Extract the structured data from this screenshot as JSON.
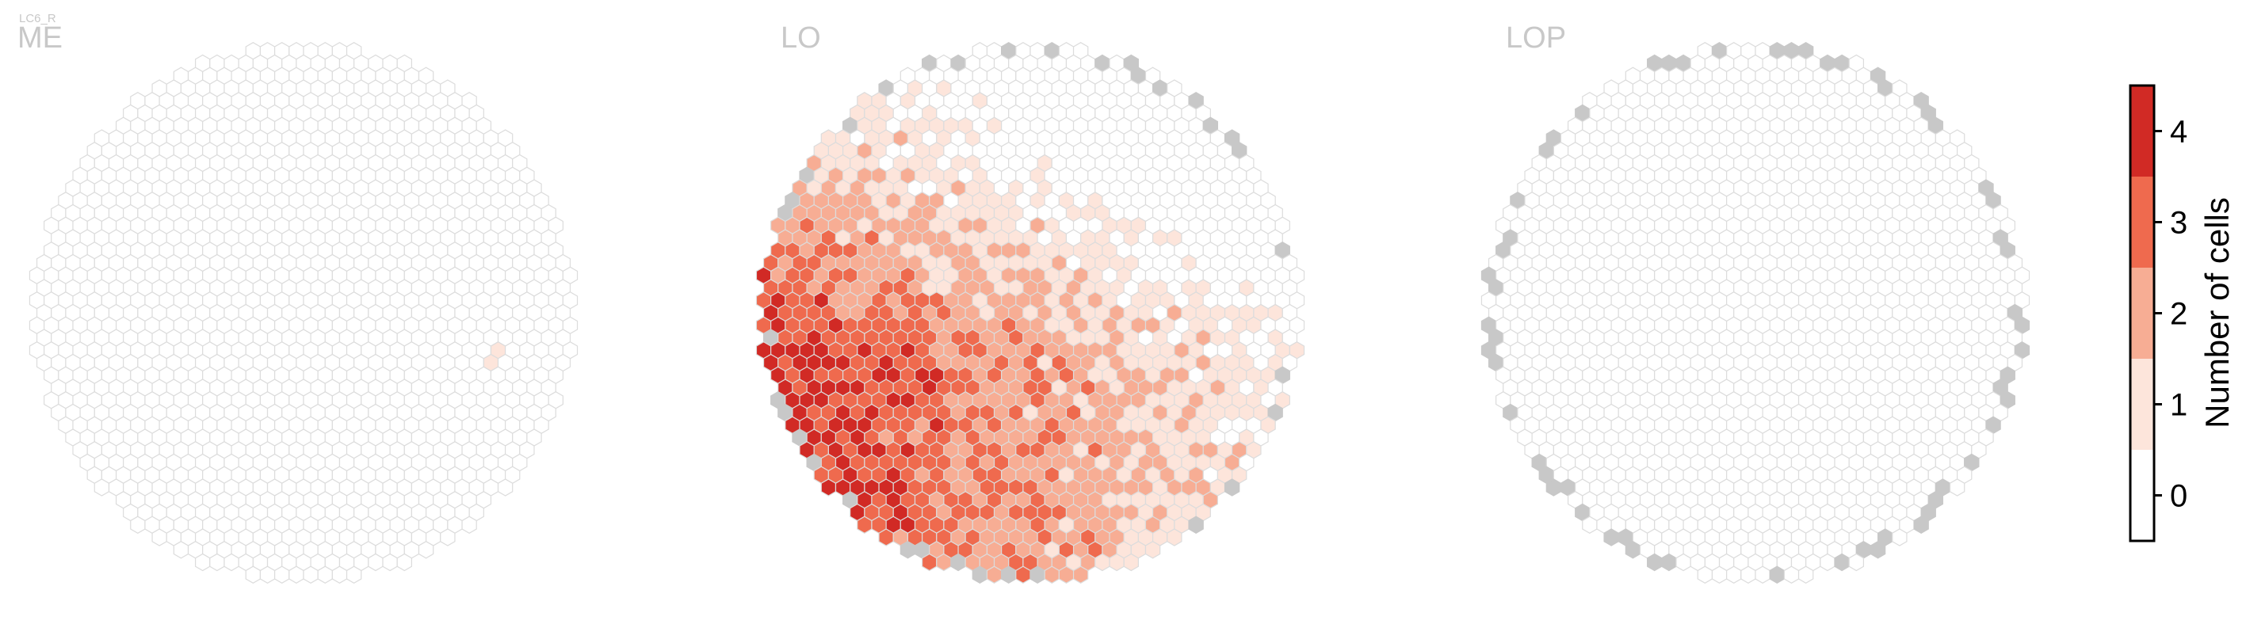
{
  "figure": {
    "cell_type_label": "LC6_R"
  },
  "chart_data": {
    "type": "heatmap",
    "description_kind": "hexagonal column map",
    "panels": [
      {
        "title": "ME",
        "empty_count_pct": 99.5,
        "hot_spots": [
          {
            "q": 13,
            "r": 3,
            "value": 1
          },
          {
            "q": 13,
            "r": 4,
            "value": 1
          }
        ]
      },
      {
        "title": "LO",
        "description": "Dense elevated activity in lower-left quadrant, values mostly 1-3, peak 4",
        "max_value": 4
      },
      {
        "title": "LOP",
        "description": "All interior columns empty; boundary columns shown in grey (no data)",
        "max_value": 0
      }
    ],
    "colorbar": {
      "label": "Number of cells",
      "ticks": [
        0,
        1,
        2,
        3,
        4
      ],
      "range": [
        -0.5,
        4.5
      ],
      "colors": [
        "#ffffff",
        "#fde5db",
        "#f7ad94",
        "#ef6a4e",
        "#d12a25"
      ],
      "no_data_color": "#c8c8c8",
      "empty_edge_color": "#dcdcdc"
    }
  }
}
